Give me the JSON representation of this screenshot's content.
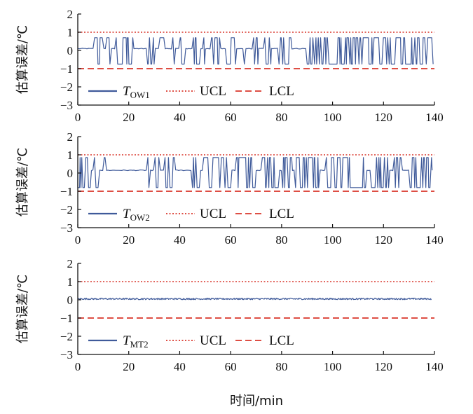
{
  "colors": {
    "series": "#3f5a9a",
    "ucl": "#d9352a",
    "lcl": "#d9352a",
    "axis": "#111111"
  },
  "xlabel": "时间/min",
  "chart_data": [
    {
      "type": "line",
      "ylabel": "估算误差/℃",
      "xlim": [
        0,
        140
      ],
      "ylim": [
        -3,
        2
      ],
      "xticks": [
        0,
        20,
        40,
        60,
        80,
        100,
        120,
        140
      ],
      "yticks": [
        2,
        1,
        0,
        -1,
        -2,
        -3
      ],
      "ucl": 1.0,
      "lcl": -1.0,
      "legend": {
        "position": "bottom-left",
        "series_main": "T",
        "series_sub": "OW1",
        "ucl": "UCL",
        "lcl": "LCL"
      },
      "series": [
        {
          "name": "T_OW1",
          "baseline": 0.1,
          "high": 0.7,
          "low": -0.75,
          "active_intervals": [
            [
              6,
              10
            ],
            [
              11,
              13
            ],
            [
              15,
              22
            ],
            [
              27,
              30
            ],
            [
              32,
              34
            ],
            [
              37,
              38
            ],
            [
              40,
              42
            ],
            [
              45,
              48
            ],
            [
              49,
              50
            ],
            [
              52,
              56
            ],
            [
              58,
              62
            ],
            [
              65,
              66
            ],
            [
              69,
              71
            ],
            [
              73,
              76
            ],
            [
              79,
              84
            ],
            [
              90,
              140
            ]
          ]
        }
      ]
    },
    {
      "type": "line",
      "ylabel": "估算误差/℃",
      "xlim": [
        0,
        140
      ],
      "ylim": [
        -3,
        2
      ],
      "xticks": [
        0,
        20,
        40,
        60,
        80,
        100,
        120,
        140
      ],
      "yticks": [
        2,
        1,
        0,
        -1,
        -2,
        -3
      ],
      "ucl": 1.0,
      "lcl": -1.0,
      "legend": {
        "position": "bottom-left",
        "series_main": "T",
        "series_sub": "OW2",
        "ucl": "UCL",
        "lcl": "LCL"
      },
      "series": [
        {
          "name": "T_OW2",
          "baseline": 0.15,
          "high": 0.85,
          "low": -0.8,
          "active_intervals": [
            [
              0,
              5
            ],
            [
              6,
              8
            ],
            [
              10,
              11
            ],
            [
              27,
              28
            ],
            [
              30,
              32
            ],
            [
              34,
              38
            ],
            [
              45,
              48
            ],
            [
              49,
              60
            ],
            [
              62,
              70
            ],
            [
              72,
              79
            ],
            [
              80,
              84
            ],
            [
              85,
              95
            ],
            [
              97,
              113
            ],
            [
              115,
              122
            ],
            [
              124,
              127
            ],
            [
              130,
              139
            ]
          ]
        }
      ]
    },
    {
      "type": "line",
      "ylabel": "估算误差/℃",
      "xlim": [
        0,
        140
      ],
      "ylim": [
        -3,
        2
      ],
      "xticks": [
        0,
        20,
        40,
        60,
        80,
        100,
        120,
        140
      ],
      "yticks": [
        2,
        1,
        0,
        -1,
        -2,
        -3
      ],
      "ucl": 1.0,
      "lcl": -1.0,
      "legend": {
        "position": "bottom-left",
        "series_main": "T",
        "series_sub": "MT2",
        "ucl": "UCL",
        "lcl": "LCL"
      },
      "series": [
        {
          "name": "T_MT2",
          "baseline": 0.05,
          "noise": 0.04,
          "active_intervals": []
        }
      ]
    }
  ]
}
